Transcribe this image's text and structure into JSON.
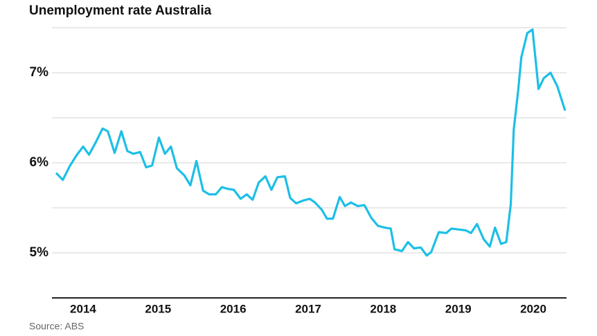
{
  "chart_data": {
    "type": "line",
    "title": "Unemployment rate Australia",
    "source": "Source: ABS",
    "x": [
      2013.65,
      2013.73,
      2013.82,
      2013.91,
      2014.0,
      2014.08,
      2014.17,
      2014.26,
      2014.33,
      2014.42,
      2014.51,
      2014.59,
      2014.67,
      2014.76,
      2014.84,
      2014.92,
      2015.01,
      2015.09,
      2015.17,
      2015.25,
      2015.35,
      2015.43,
      2015.51,
      2015.6,
      2015.68,
      2015.77,
      2015.85,
      2015.93,
      2016.01,
      2016.1,
      2016.18,
      2016.26,
      2016.34,
      2016.43,
      2016.51,
      2016.59,
      2016.69,
      2016.76,
      2016.84,
      2016.93,
      2017.02,
      2017.09,
      2017.18,
      2017.25,
      2017.33,
      2017.42,
      2017.49,
      2017.57,
      2017.66,
      2017.75,
      2017.84,
      2017.93,
      2018.02,
      2018.1,
      2018.15,
      2018.25,
      2018.33,
      2018.41,
      2018.5,
      2018.58,
      2018.64,
      2018.74,
      2018.84,
      2018.91,
      2019.0,
      2019.1,
      2019.17,
      2019.25,
      2019.34,
      2019.42,
      2019.49,
      2019.57,
      2019.64,
      2019.7,
      2019.74,
      2019.8,
      2019.84,
      2019.92,
      2019.99,
      2020.07,
      2020.14,
      2020.23,
      2020.32,
      2020.42
    ],
    "values": [
      5.88,
      5.81,
      5.96,
      6.08,
      6.18,
      6.09,
      6.23,
      6.38,
      6.35,
      6.11,
      6.35,
      6.13,
      6.1,
      6.12,
      5.95,
      5.97,
      6.28,
      6.1,
      6.18,
      5.94,
      5.86,
      5.75,
      6.02,
      5.69,
      5.65,
      5.65,
      5.73,
      5.71,
      5.7,
      5.6,
      5.65,
      5.59,
      5.78,
      5.85,
      5.7,
      5.84,
      5.85,
      5.61,
      5.55,
      5.58,
      5.6,
      5.56,
      5.48,
      5.38,
      5.38,
      5.62,
      5.52,
      5.56,
      5.52,
      5.53,
      5.39,
      5.3,
      5.28,
      5.27,
      5.04,
      5.02,
      5.12,
      5.05,
      5.06,
      4.97,
      5.01,
      5.23,
      5.22,
      5.27,
      5.26,
      5.25,
      5.22,
      5.32,
      5.15,
      5.07,
      5.28,
      5.1,
      5.12,
      5.54,
      6.37,
      6.81,
      7.17,
      7.44,
      7.48,
      6.82,
      6.94,
      7.0,
      6.85,
      6.59
    ],
    "color": "#1cbfe6",
    "xlim": [
      2013.585,
      2020.443
    ],
    "xticks": [
      2014,
      2015,
      2016,
      2017,
      2018,
      2019,
      2020
    ],
    "ylim": [
      4.5,
      7.5
    ],
    "yticks": [
      {
        "value": 5,
        "label": "5%"
      },
      {
        "value": 6,
        "label": "6%"
      },
      {
        "value": 7,
        "label": "7%"
      }
    ],
    "minor_yticks": [
      5.5,
      6.5,
      7.5
    ],
    "grid": true
  }
}
